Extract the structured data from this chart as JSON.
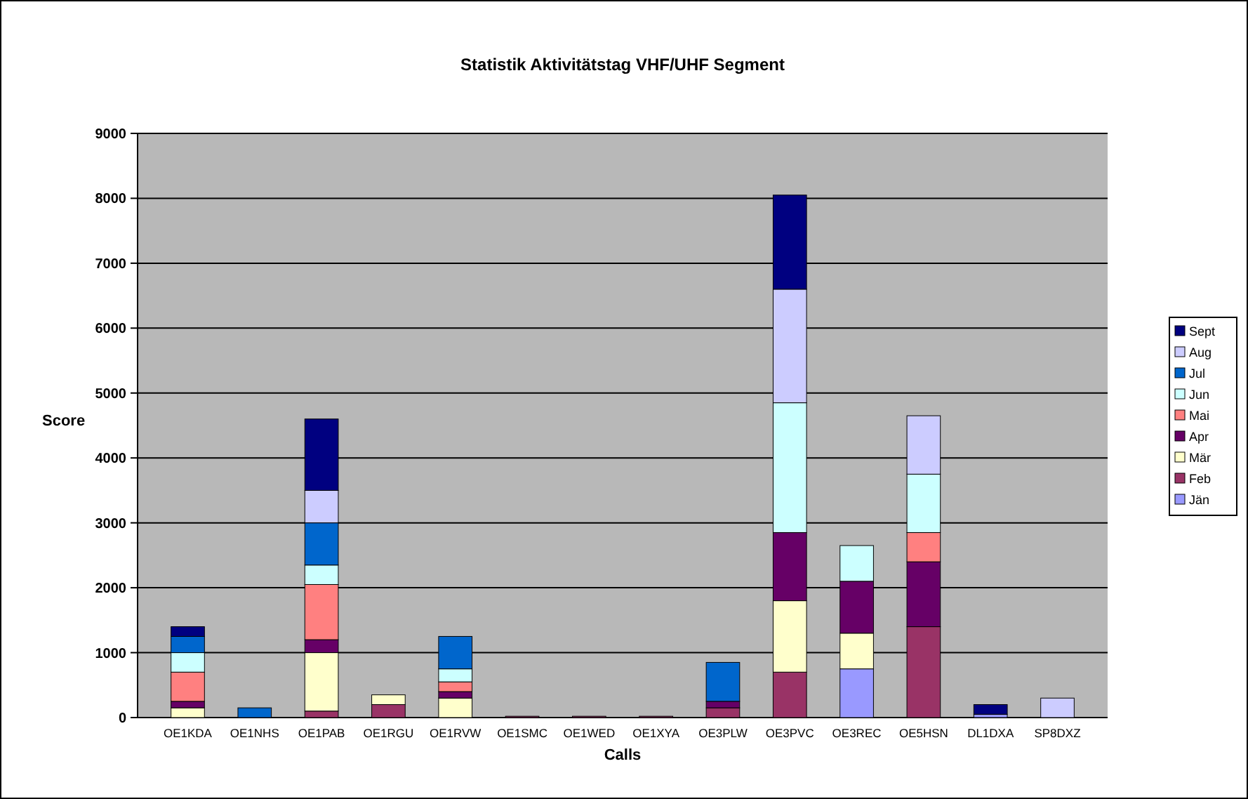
{
  "chart_data": {
    "type": "bar",
    "stacked": true,
    "title": "Statistik Aktivitätstag VHF/UHF Segment",
    "xlabel": "Calls",
    "ylabel": "Score",
    "categories": [
      "OE1KDA",
      "OE1NHS",
      "OE1PAB",
      "OE1RGU",
      "OE1RVW",
      "OE1SMC",
      "OE1WED",
      "OE1XYA",
      "OE3PLW",
      "OE3PVC",
      "OE3REC",
      "OE5HSN",
      "DL1DXA",
      "SP8DXZ"
    ],
    "ylim": [
      0,
      9000
    ],
    "yticks": [
      0,
      1000,
      2000,
      3000,
      4000,
      5000,
      6000,
      7000,
      8000,
      9000
    ],
    "grid": "y",
    "legend": "right",
    "series": [
      {
        "name": "Jän",
        "color": "#9999ff",
        "values": [
          0,
          0,
          0,
          0,
          0,
          0,
          0,
          0,
          0,
          0,
          750,
          0,
          50,
          0
        ]
      },
      {
        "name": "Feb",
        "color": "#993366",
        "values": [
          0,
          0,
          100,
          200,
          0,
          20,
          20,
          20,
          150,
          700,
          0,
          1400,
          0,
          0
        ]
      },
      {
        "name": "Mär",
        "color": "#ffffcc",
        "values": [
          150,
          0,
          900,
          150,
          300,
          0,
          0,
          0,
          0,
          1100,
          550,
          0,
          0,
          0
        ]
      },
      {
        "name": "Apr",
        "color": "#660066",
        "values": [
          100,
          0,
          200,
          0,
          100,
          0,
          0,
          0,
          100,
          1050,
          800,
          1000,
          0,
          0
        ]
      },
      {
        "name": "Mai",
        "color": "#ff8080",
        "values": [
          450,
          0,
          850,
          0,
          150,
          0,
          0,
          0,
          0,
          0,
          0,
          450,
          0,
          0
        ]
      },
      {
        "name": "Jun",
        "color": "#ccffff",
        "values": [
          300,
          0,
          300,
          0,
          200,
          0,
          0,
          0,
          0,
          2000,
          550,
          900,
          0,
          0
        ]
      },
      {
        "name": "Jul",
        "color": "#0066cc",
        "values": [
          250,
          150,
          650,
          0,
          500,
          0,
          0,
          0,
          600,
          0,
          0,
          0,
          0,
          0
        ]
      },
      {
        "name": "Aug",
        "color": "#ccccff",
        "values": [
          0,
          0,
          500,
          0,
          0,
          0,
          0,
          0,
          0,
          1750,
          0,
          900,
          0,
          300
        ]
      },
      {
        "name": "Sept",
        "color": "#000080",
        "values": [
          150,
          0,
          1100,
          0,
          0,
          0,
          0,
          0,
          0,
          1450,
          0,
          0,
          150,
          0
        ]
      }
    ]
  }
}
